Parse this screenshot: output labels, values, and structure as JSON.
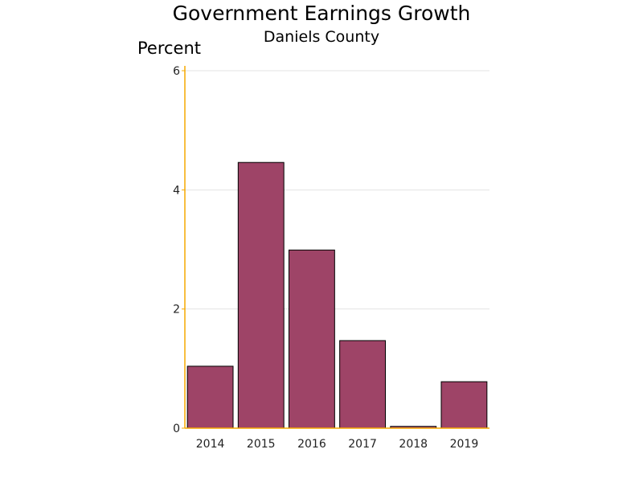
{
  "chart_data": {
    "type": "bar",
    "title": "Government Earnings Growth",
    "subtitle": "Daniels County",
    "xlabel": "",
    "ylabel": "Percent",
    "categories": [
      "2014",
      "2015",
      "2016",
      "2017",
      "2018",
      "2019"
    ],
    "values": [
      1.04,
      4.46,
      2.99,
      1.47,
      0.03,
      0.78
    ],
    "ylim": [
      0,
      6
    ],
    "yticks": [
      0,
      2,
      4,
      6
    ],
    "grid": true,
    "colors": {
      "bar": "#9e4467",
      "bar_edge": "#000000",
      "axis": "#f5a800",
      "grid": "#e3e3e3"
    }
  }
}
